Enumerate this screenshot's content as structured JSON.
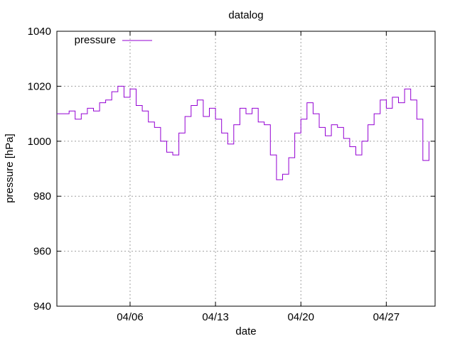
{
  "chart_data": {
    "type": "line",
    "title": "datalog",
    "xlabel": "date",
    "ylabel": "pressure [hPa]",
    "ylim": [
      940,
      1040
    ],
    "yticks": [
      940,
      960,
      980,
      1000,
      1020,
      1040
    ],
    "xlim": [
      "2024-03-31",
      "2024-05-01"
    ],
    "xticks": [
      {
        "label": "04/06",
        "date": "2024-04-06"
      },
      {
        "label": "04/13",
        "date": "2024-04-13"
      },
      {
        "label": "04/20",
        "date": "2024-04-20"
      },
      {
        "label": "04/27",
        "date": "2024-04-27"
      }
    ],
    "grid": true,
    "legend": "top-left",
    "series": [
      {
        "name": "pressure",
        "color": "#9400d3",
        "points": [
          [
            "2024-03-31",
            1010
          ],
          [
            "2024-04-01",
            1011
          ],
          [
            "2024-04-01T12:00",
            1008
          ],
          [
            "2024-04-02",
            1010
          ],
          [
            "2024-04-02T12:00",
            1012
          ],
          [
            "2024-04-03",
            1011
          ],
          [
            "2024-04-03T12:00",
            1014
          ],
          [
            "2024-04-04",
            1015
          ],
          [
            "2024-04-04T12:00",
            1018
          ],
          [
            "2024-04-05",
            1020
          ],
          [
            "2024-04-05T12:00",
            1016
          ],
          [
            "2024-04-06",
            1019
          ],
          [
            "2024-04-06T12:00",
            1013
          ],
          [
            "2024-04-07",
            1011
          ],
          [
            "2024-04-07T12:00",
            1007
          ],
          [
            "2024-04-08",
            1005
          ],
          [
            "2024-04-08T12:00",
            1000
          ],
          [
            "2024-04-09",
            996
          ],
          [
            "2024-04-09T12:00",
            995
          ],
          [
            "2024-04-10",
            1003
          ],
          [
            "2024-04-10T12:00",
            1009
          ],
          [
            "2024-04-11",
            1013
          ],
          [
            "2024-04-11T12:00",
            1015
          ],
          [
            "2024-04-12",
            1009
          ],
          [
            "2024-04-12T12:00",
            1012
          ],
          [
            "2024-04-13",
            1008
          ],
          [
            "2024-04-13T12:00",
            1003
          ],
          [
            "2024-04-14",
            999
          ],
          [
            "2024-04-14T12:00",
            1006
          ],
          [
            "2024-04-15",
            1012
          ],
          [
            "2024-04-15T12:00",
            1010
          ],
          [
            "2024-04-16",
            1012
          ],
          [
            "2024-04-16T12:00",
            1007
          ],
          [
            "2024-04-17",
            1006
          ],
          [
            "2024-04-17T12:00",
            995
          ],
          [
            "2024-04-18",
            986
          ],
          [
            "2024-04-18T12:00",
            988
          ],
          [
            "2024-04-19",
            994
          ],
          [
            "2024-04-19T12:00",
            1003
          ],
          [
            "2024-04-20",
            1008
          ],
          [
            "2024-04-20T12:00",
            1014
          ],
          [
            "2024-04-21",
            1010
          ],
          [
            "2024-04-21T12:00",
            1005
          ],
          [
            "2024-04-22",
            1002
          ],
          [
            "2024-04-22T12:00",
            1006
          ],
          [
            "2024-04-23",
            1005
          ],
          [
            "2024-04-23T12:00",
            1001
          ],
          [
            "2024-04-24",
            998
          ],
          [
            "2024-04-24T12:00",
            995
          ],
          [
            "2024-04-25",
            1000
          ],
          [
            "2024-04-25T12:00",
            1006
          ],
          [
            "2024-04-26",
            1010
          ],
          [
            "2024-04-26T12:00",
            1015
          ],
          [
            "2024-04-27",
            1012
          ],
          [
            "2024-04-27T12:00",
            1016
          ],
          [
            "2024-04-28",
            1014
          ],
          [
            "2024-04-28T12:00",
            1019
          ],
          [
            "2024-04-29",
            1015
          ],
          [
            "2024-04-29T12:00",
            1008
          ],
          [
            "2024-04-30",
            993
          ],
          [
            "2024-04-30T12:00",
            1000
          ]
        ]
      }
    ]
  }
}
